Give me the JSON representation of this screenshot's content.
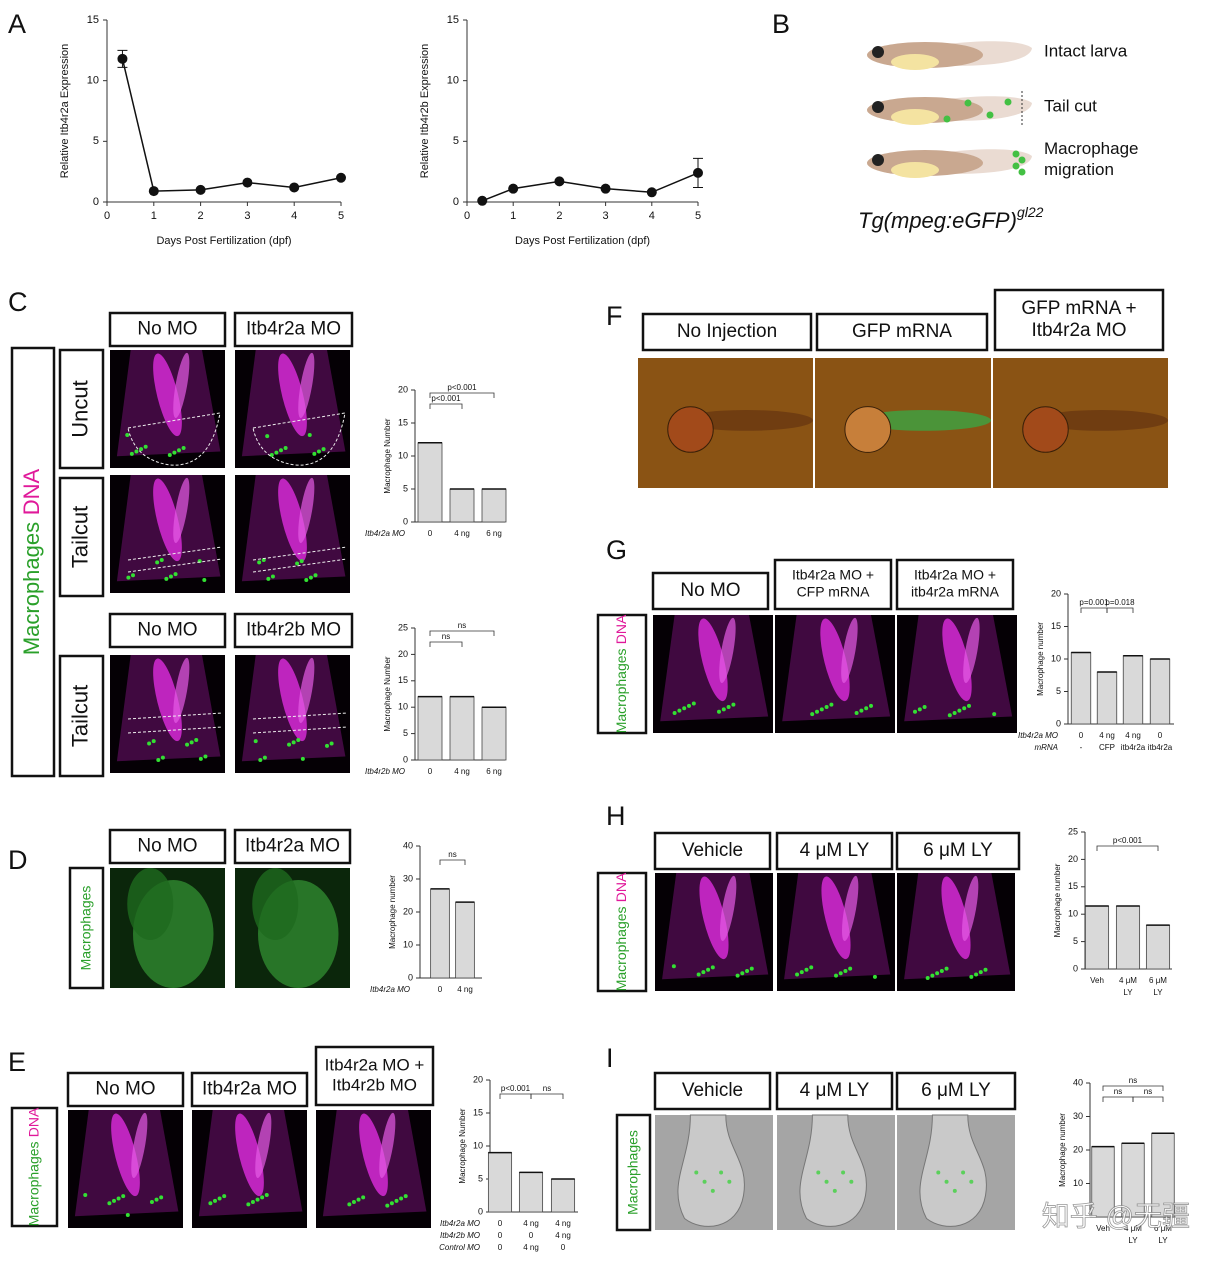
{
  "panels": [
    {
      "label": "A",
      "charts": [
        {
          "type": "line",
          "y_label": "Relative Itb4r2a Expression",
          "x_label": "Days Post Fertilization (dpf)",
          "x": [
            0.33,
            1,
            2,
            3,
            4,
            5
          ],
          "values": [
            11.8,
            0.9,
            1.0,
            1.6,
            1.2,
            2.0
          ],
          "errors": [
            0.7,
            null,
            null,
            null,
            null,
            null
          ],
          "xlim": [
            0,
            5
          ],
          "ylim": [
            0,
            15
          ],
          "xticks": [
            0,
            1,
            2,
            3,
            4,
            5
          ],
          "yticks": [
            0,
            5,
            10,
            15
          ],
          "color": "#111111"
        },
        {
          "type": "line",
          "y_label": "Relative Itb4r2b Expression",
          "x_label": "Days Post Fertilization (dpf)",
          "x": [
            0.33,
            1,
            2,
            3,
            4,
            5
          ],
          "values": [
            0.1,
            1.1,
            1.7,
            1.1,
            0.8,
            2.4
          ],
          "errors": [
            null,
            null,
            null,
            null,
            null,
            1.2
          ],
          "xlim": [
            0,
            5
          ],
          "ylim": [
            0,
            15
          ],
          "xticks": [
            0,
            1,
            2,
            3,
            4,
            5
          ],
          "yticks": [
            0,
            5,
            10,
            15
          ],
          "color": "#111111"
        }
      ]
    },
    {
      "label": "B",
      "stages": [
        [
          "Intact larva"
        ],
        [
          "Tail cut"
        ],
        [
          "Macrophage",
          "migration"
        ]
      ],
      "genotype": "Tg(mpeg:eGFP)",
      "genotype_superscript": "gl22"
    },
    {
      "label": "C",
      "stain": [
        "Macrophages",
        "DNA"
      ],
      "groups": [
        {
          "headers": [
            [
              "No MO"
            ],
            [
              "Itb4r2a MO"
            ]
          ],
          "conditions": [
            "Uncut",
            "Tailcut"
          ],
          "chart": {
            "type": "bar",
            "y_label": "Macrophage Number",
            "ylim": [
              0,
              20
            ],
            "yticks": [
              0,
              5,
              10,
              15,
              20
            ],
            "row_labels": [
              "Itb4r2a MO"
            ],
            "categories": [
              [
                "0"
              ],
              [
                "4 ng"
              ],
              [
                "6 ng"
              ]
            ],
            "values": [
              12,
              5,
              5
            ],
            "color": "#d9d9d9",
            "annotations": [
              "p<0.001",
              "p<0.001"
            ]
          }
        },
        {
          "headers": [
            [
              "No MO"
            ],
            [
              "Itb4r2b MO"
            ]
          ],
          "conditions": [
            "Tailcut"
          ],
          "chart": {
            "type": "bar",
            "y_label": "Macrophage Number",
            "ylim": [
              0,
              25
            ],
            "yticks": [
              0,
              5,
              10,
              15,
              20,
              25
            ],
            "row_labels": [
              "Itb4r2b MO"
            ],
            "categories": [
              [
                "0"
              ],
              [
                "4 ng"
              ],
              [
                "6 ng"
              ]
            ],
            "values": [
              12,
              12,
              10
            ],
            "color": "#d9d9d9",
            "annotations": [
              "ns",
              "ns"
            ]
          }
        }
      ]
    },
    {
      "label": "D",
      "stain": [
        "Macrophages"
      ],
      "headers": [
        [
          "No MO"
        ],
        [
          "Itb4r2a MO"
        ]
      ],
      "chart": {
        "type": "bar",
        "y_label": "Macrophage number",
        "ylim": [
          0,
          40
        ],
        "yticks": [
          0,
          10,
          20,
          30,
          40
        ],
        "row_labels": [
          "Itb4r2a MO"
        ],
        "categories": [
          [
            "0"
          ],
          [
            "4 ng"
          ]
        ],
        "values": [
          27,
          23
        ],
        "color": "#d9d9d9",
        "annotations": [
          "ns"
        ]
      }
    },
    {
      "label": "E",
      "stain": [
        "Macrophages",
        "DNA"
      ],
      "headers": [
        [
          "No MO"
        ],
        [
          "Itb4r2a MO"
        ],
        [
          "Itb4r2a MO +",
          "Itb4r2b MO"
        ]
      ],
      "chart": {
        "type": "bar",
        "y_label": "Macrophage Number",
        "ylim": [
          0,
          20
        ],
        "yticks": [
          0,
          5,
          10,
          15,
          20
        ],
        "row_labels": [
          "Itb4r2a MO",
          "Itb4r2b MO",
          "Control MO"
        ],
        "categories": [
          [
            "0",
            "0",
            "0"
          ],
          [
            "4 ng",
            "0",
            "4 ng"
          ],
          [
            "4 ng",
            "4 ng",
            "0"
          ]
        ],
        "values": [
          9,
          6,
          5
        ],
        "color": "#d9d9d9",
        "annotations": [
          "p<0.001",
          "ns"
        ]
      }
    },
    {
      "label": "F",
      "headers": [
        [
          "No Injection"
        ],
        [
          "GFP mRNA"
        ],
        [
          "GFP mRNA +",
          "Itb4r2a MO"
        ]
      ]
    },
    {
      "label": "G",
      "stain": [
        "Macrophages",
        "DNA"
      ],
      "headers": [
        [
          "No MO"
        ],
        [
          "Itb4r2a MO +",
          "CFP mRNA"
        ],
        [
          "Itb4r2a MO +",
          "itb4r2a mRNA"
        ]
      ],
      "chart": {
        "type": "bar",
        "y_label": "Macrophage number",
        "ylim": [
          0,
          20
        ],
        "yticks": [
          0,
          5,
          10,
          15,
          20
        ],
        "row_labels": [
          "Itb4r2a MO",
          "mRNA"
        ],
        "categories": [
          [
            "0",
            "-"
          ],
          [
            "4 ng",
            "CFP"
          ],
          [
            "4 ng",
            "itb4r2a"
          ],
          [
            "0",
            "itb4r2a"
          ]
        ],
        "values": [
          11,
          8,
          10.5,
          10
        ],
        "color": "#d9d9d9",
        "annotations": [
          "p=0.001",
          "p=0.018"
        ]
      }
    },
    {
      "label": "H",
      "stain": [
        "Macrophages",
        "DNA"
      ],
      "headers": [
        [
          "Vehicle"
        ],
        [
          "4 μM LY"
        ],
        [
          "6 μM LY"
        ]
      ],
      "chart": {
        "type": "bar",
        "y_label": "Macrophage number",
        "ylim": [
          0,
          25
        ],
        "yticks": [
          0,
          5,
          10,
          15,
          20,
          25
        ],
        "row_labels": [],
        "categories": [
          [
            "Veh"
          ],
          [
            "4 μM",
            "LY"
          ],
          [
            "6 μM",
            "LY"
          ]
        ],
        "values": [
          11.5,
          11.5,
          8
        ],
        "color": "#d9d9d9",
        "annotations": [
          "p<0.001"
        ]
      }
    },
    {
      "label": "I",
      "stain": [
        "Macrophages"
      ],
      "headers": [
        [
          "Vehicle"
        ],
        [
          "4 μM LY"
        ],
        [
          "6 μM LY"
        ]
      ],
      "chart": {
        "type": "bar",
        "y_label": "Macrophage number",
        "ylim": [
          0,
          40
        ],
        "yticks": [
          10,
          20,
          30,
          40
        ],
        "row_labels": [],
        "categories": [
          [
            "Veh"
          ],
          [
            "4 μM",
            "LY"
          ],
          [
            "6 μM",
            "LY"
          ]
        ],
        "values": [
          21,
          22,
          25
        ],
        "color": "#d9d9d9",
        "annotations": [
          "ns",
          "ns",
          "ns"
        ]
      }
    }
  ],
  "watermark": "知乎 @无疆"
}
